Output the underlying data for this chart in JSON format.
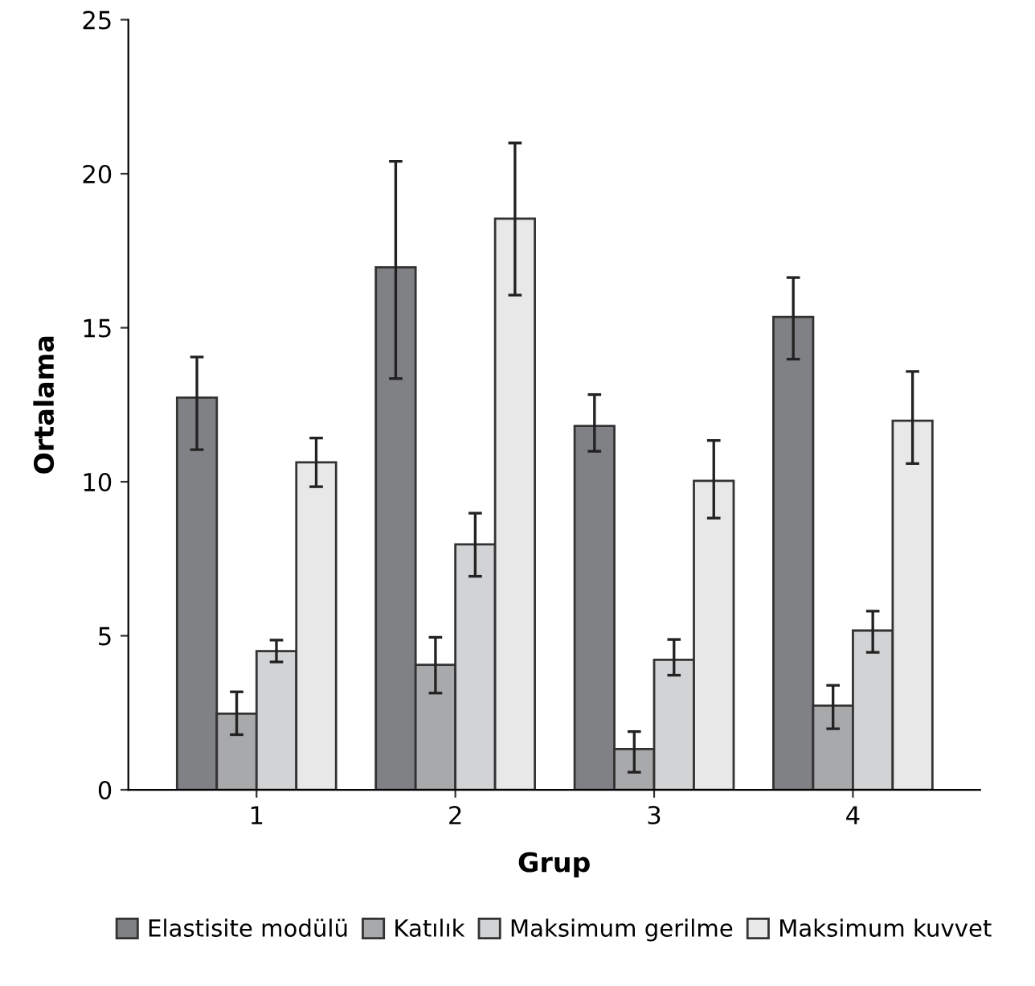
{
  "chart_data": {
    "type": "bar",
    "xlabel": "Grup",
    "ylabel": "Ortalama",
    "categories": [
      "1",
      "2",
      "3",
      "4"
    ],
    "series": [
      {
        "name": "Elastisite modülü",
        "color": "#808184",
        "values": [
          12.73,
          16.96,
          11.81,
          15.35
        ],
        "errors": [
          [
            11.04,
            14.05
          ],
          [
            13.35,
            20.4
          ],
          [
            10.99,
            12.83
          ],
          [
            13.98,
            16.63
          ]
        ]
      },
      {
        "name": "Katılık",
        "color": "#a8a9ab",
        "values": [
          2.47,
          4.06,
          1.32,
          2.73
        ],
        "errors": [
          [
            1.79,
            3.18
          ],
          [
            3.14,
            4.95
          ],
          [
            0.57,
            1.89
          ],
          [
            1.98,
            3.39
          ]
        ]
      },
      {
        "name": "Maksimum gerilme",
        "color": "#d2d3d5",
        "values": [
          4.5,
          7.97,
          4.22,
          5.17
        ],
        "errors": [
          [
            4.15,
            4.86
          ],
          [
            6.93,
            8.98
          ],
          [
            3.72,
            4.88
          ],
          [
            4.46,
            5.8
          ]
        ]
      },
      {
        "name": "Maksimum kuvvet",
        "color": "#e8e8e8",
        "values": [
          10.63,
          18.54,
          10.03,
          11.98
        ],
        "errors": [
          [
            9.84,
            11.42
          ],
          [
            16.06,
            21.0
          ],
          [
            8.82,
            11.34
          ],
          [
            10.59,
            13.58
          ]
        ]
      }
    ],
    "ylim": [
      0,
      25
    ],
    "yticks": [
      0,
      5,
      10,
      15,
      20,
      25
    ],
    "grid": false,
    "legend": "bottom"
  }
}
